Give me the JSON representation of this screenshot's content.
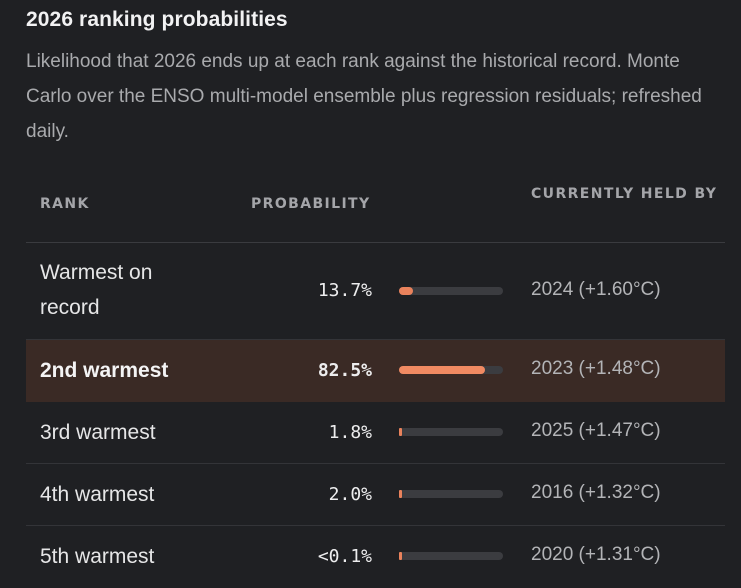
{
  "header": {
    "title": "2026 ranking probabilities",
    "description": "Likelihood that 2026 ends up at each rank against the historical record. Monte Carlo over the ENSO multi-model ensemble plus regression residuals; refreshed daily."
  },
  "table": {
    "columns": {
      "rank": "RANK",
      "probability": "PROBABILITY",
      "held_by": "CURRENTLY HELD BY"
    },
    "rows": [
      {
        "rank": "Warmest on record",
        "probability": "13.7%",
        "fraction": 0.137,
        "held_by": "2024 (+1.60°C)",
        "highlight": false
      },
      {
        "rank": "2nd warmest",
        "probability": "82.5%",
        "fraction": 0.825,
        "held_by": "2023 (+1.48°C)",
        "highlight": true
      },
      {
        "rank": "3rd warmest",
        "probability": "1.8%",
        "fraction": 0.018,
        "held_by": "2025 (+1.47°C)",
        "highlight": false
      },
      {
        "rank": "4th warmest",
        "probability": "2.0%",
        "fraction": 0.02,
        "held_by": "2016 (+1.32°C)",
        "highlight": false
      },
      {
        "rank": "5th warmest",
        "probability": "<0.1%",
        "fraction": 0.001,
        "held_by": "2020 (+1.31°C)",
        "highlight": false
      }
    ]
  },
  "colors": {
    "accent": "#e9825c",
    "highlight_row": "#3a2a25",
    "background": "#1f2023"
  }
}
